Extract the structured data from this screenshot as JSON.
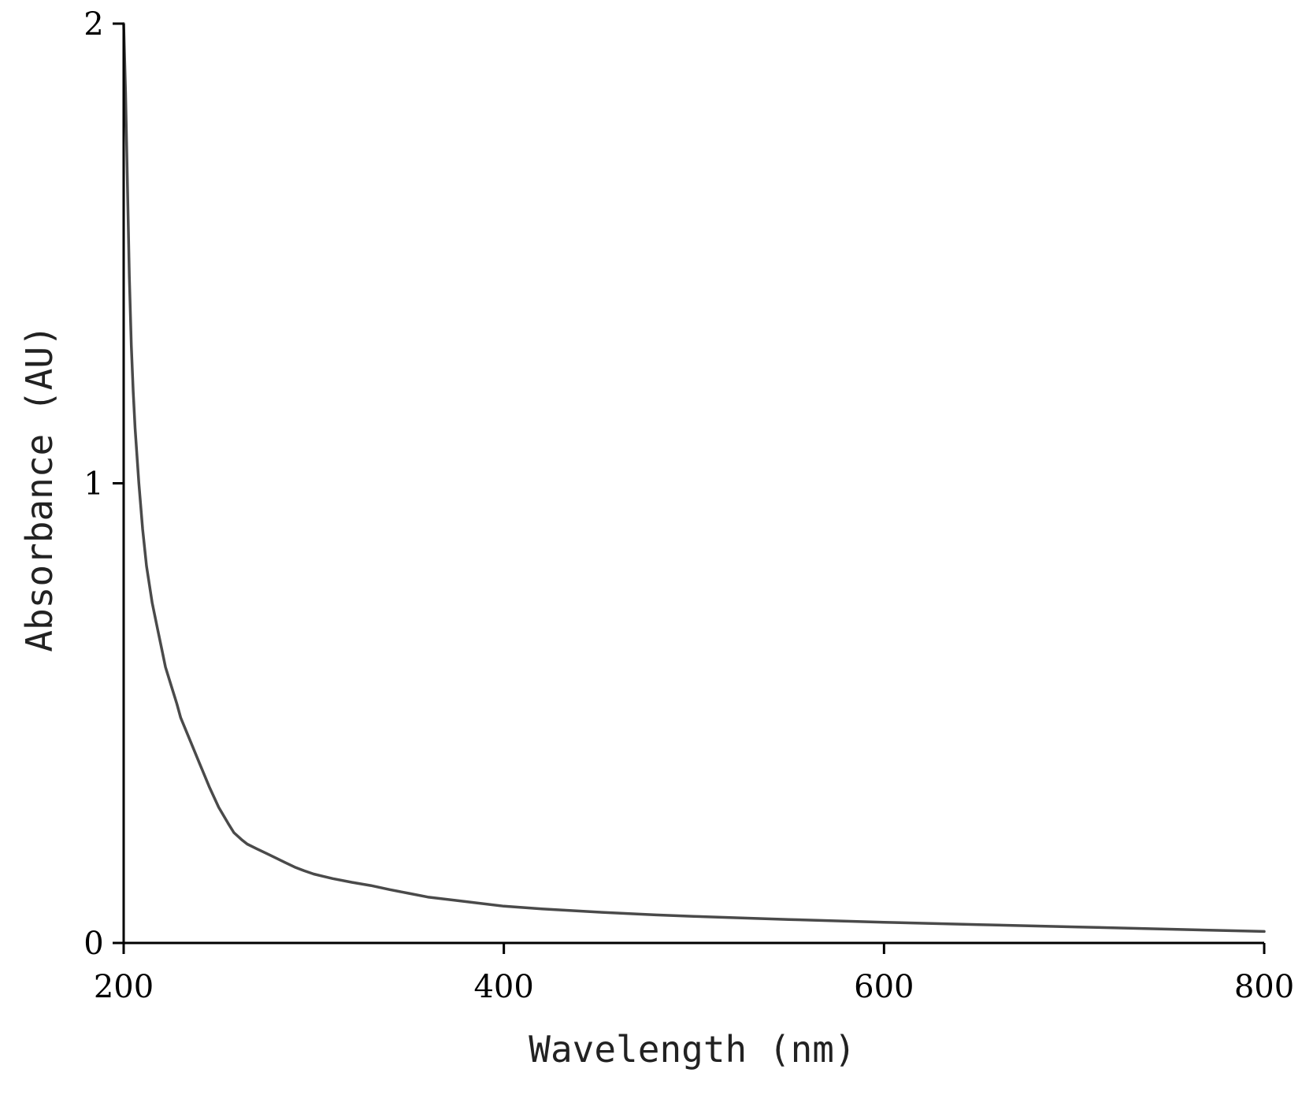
{
  "chart_data": {
    "type": "line",
    "title": "",
    "xlabel": "Wavelength (nm)",
    "ylabel": "Absorbance (AU)",
    "xlim": [
      200,
      800
    ],
    "ylim": [
      0,
      2
    ],
    "x_ticks": [
      200,
      400,
      600,
      800
    ],
    "x_tick_labels": [
      "200",
      "400",
      "600",
      "800"
    ],
    "y_ticks": [
      0,
      1,
      2
    ],
    "y_tick_labels": [
      "0",
      "1",
      "2"
    ],
    "grid": false,
    "legend": "none",
    "series": [
      {
        "color": "#4a4a4a",
        "x": [
          200,
          201,
          202,
          203,
          204,
          205,
          206,
          208,
          210,
          212,
          215,
          218,
          220,
          222,
          225,
          228,
          230,
          235,
          240,
          245,
          250,
          255,
          258,
          262,
          265,
          270,
          275,
          280,
          285,
          290,
          295,
          300,
          305,
          310,
          320,
          330,
          340,
          350,
          360,
          380,
          400,
          420,
          450,
          480,
          500,
          550,
          600,
          650,
          700,
          750,
          800
        ],
        "y": [
          2.0,
          1.85,
          1.65,
          1.45,
          1.3,
          1.2,
          1.12,
          1.0,
          0.9,
          0.82,
          0.74,
          0.68,
          0.64,
          0.6,
          0.56,
          0.52,
          0.49,
          0.44,
          0.39,
          0.34,
          0.295,
          0.26,
          0.24,
          0.225,
          0.215,
          0.205,
          0.195,
          0.185,
          0.175,
          0.165,
          0.157,
          0.15,
          0.145,
          0.14,
          0.132,
          0.125,
          0.116,
          0.108,
          0.1,
          0.09,
          0.08,
          0.074,
          0.067,
          0.061,
          0.058,
          0.051,
          0.045,
          0.04,
          0.035,
          0.03,
          0.025
        ]
      }
    ]
  }
}
